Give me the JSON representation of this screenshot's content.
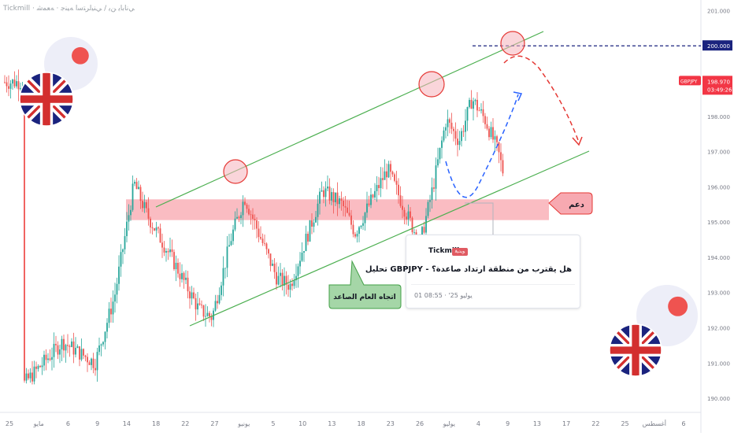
{
  "header": {
    "source_text": "Tickmill · ﻲﻧﺎﺑﺎﻳ ﻦﻳ / ﻲﻨﻴﻟﺮﺘﺳﺍ ﻪﻴﻨﺟ · ﻪﻌﻤﺷ"
  },
  "colors": {
    "up_candle": "#26a69a",
    "down_candle": "#ef5350",
    "channel": "#4caf50",
    "support_zone": "#f8a5ae",
    "level_line": "#1a237e",
    "price_tag": "#f23645",
    "projection_up": "#2962ff",
    "projection_down": "#e53935"
  },
  "price_axis": {
    "ticks": [
      "201.000",
      "200.000",
      "199.000",
      "198.000",
      "197.000",
      "196.000",
      "195.000",
      "194.000",
      "193.000",
      "192.000",
      "191.000",
      "190.000"
    ],
    "level_label": "200.000",
    "symbol_tag": "GBPJPY",
    "last_price": "198.970",
    "countdown": "03:49:26"
  },
  "time_axis": {
    "ticks": [
      "25",
      "مايو",
      "6",
      "9",
      "14",
      "18",
      "22",
      "27",
      "يونيو",
      "5",
      "10",
      "13",
      "18",
      "23",
      "26",
      "يوليو",
      "4",
      "9",
      "13",
      "17",
      "22",
      "25",
      "أغسطس",
      "6"
    ]
  },
  "annotations": {
    "support_label": "دعم",
    "trend_label": "اتجاه العام الصاعد"
  },
  "idea_card": {
    "brand": "Tickmill",
    "badge": "ﻮﻳﺪﻴﻓ",
    "title": "هل يقترب من منطقة ارتداد صاعدة؟ - GBPJPY تحليل",
    "date": "01 08:55 · '25 يوليو"
  },
  "chart_data": {
    "type": "candlestick",
    "symbol": "GBPJPY",
    "timeframe": "4h",
    "ylim": [
      189.6,
      201.3
    ],
    "x_range": [
      "2025-04-25",
      "2025-08-06"
    ],
    "grid": true,
    "price_points": [
      {
        "date": "2025-04-25",
        "close": 190.4
      },
      {
        "date": "2025-05-01",
        "close": 191.6
      },
      {
        "date": "2025-05-06",
        "close": 191.0
      },
      {
        "date": "2025-05-09",
        "close": 192.9
      },
      {
        "date": "2025-05-12",
        "close": 196.1
      },
      {
        "date": "2025-05-14",
        "close": 195.2
      },
      {
        "date": "2025-05-18",
        "close": 193.9
      },
      {
        "date": "2025-05-22",
        "close": 192.5
      },
      {
        "date": "2025-05-24",
        "close": 192.3
      },
      {
        "date": "2025-05-27",
        "close": 194.6
      },
      {
        "date": "2025-05-29",
        "close": 195.7
      },
      {
        "date": "2025-06-01",
        "close": 194.3
      },
      {
        "date": "2025-06-03",
        "close": 193.4
      },
      {
        "date": "2025-06-05",
        "close": 193.2
      },
      {
        "date": "2025-06-08",
        "close": 194.8
      },
      {
        "date": "2025-06-10",
        "close": 195.9
      },
      {
        "date": "2025-06-13",
        "close": 195.5
      },
      {
        "date": "2025-06-15",
        "close": 194.7
      },
      {
        "date": "2025-06-18",
        "close": 195.8
      },
      {
        "date": "2025-06-20",
        "close": 196.5
      },
      {
        "date": "2025-06-23",
        "close": 195.2
      },
      {
        "date": "2025-06-25",
        "close": 194.4
      },
      {
        "date": "2025-06-27",
        "close": 196.0
      },
      {
        "date": "2025-06-29",
        "close": 197.9
      },
      {
        "date": "2025-07-01",
        "close": 197.3
      },
      {
        "date": "2025-07-03",
        "close": 198.5
      },
      {
        "date": "2025-07-05",
        "close": 197.9
      },
      {
        "date": "2025-07-07",
        "close": 197.0
      },
      {
        "date": "2025-07-09",
        "close": 195.5
      },
      {
        "date": "2025-07-10",
        "close": 196.2
      },
      {
        "date": "2025-07-12",
        "close": 197.9
      },
      {
        "date": "2025-07-14",
        "close": 197.2
      },
      {
        "date": "2025-07-16",
        "close": 198.4
      },
      {
        "date": "2025-07-18",
        "close": 198.97
      }
    ],
    "support_zone": [
      195.1,
      195.6
    ],
    "key_level": 200.0,
    "last_price": 198.97
  }
}
